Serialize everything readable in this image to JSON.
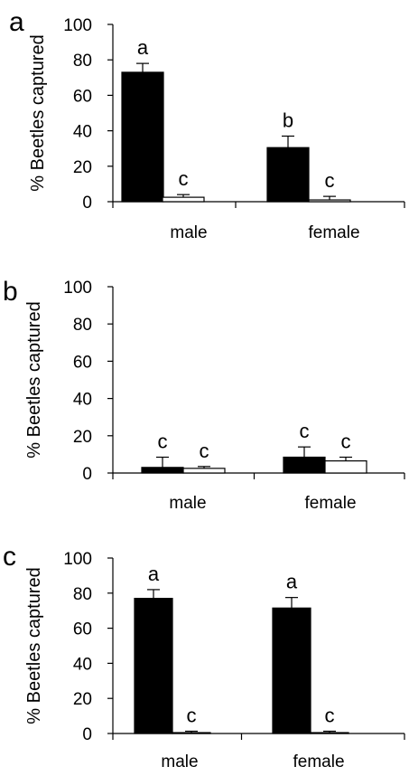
{
  "chart_data": [
    {
      "type": "bar",
      "panel_label": "a",
      "ylabel": "% Beetles captured",
      "ylim": [
        0,
        100
      ],
      "yticks": [
        0,
        20,
        40,
        60,
        80,
        100
      ],
      "categories": [
        "male",
        "female"
      ],
      "series": [
        {
          "fill": "#000000",
          "values": [
            73,
            30.5
          ],
          "errors": [
            5,
            6.5
          ],
          "letters": [
            "a",
            "b"
          ]
        },
        {
          "fill": "#ffffff",
          "values": [
            2.5,
            1
          ],
          "errors": [
            1.5,
            2
          ],
          "letters": [
            "c",
            "c"
          ]
        }
      ]
    },
    {
      "type": "bar",
      "panel_label": "b",
      "ylabel": "% Beetles captured",
      "ylim": [
        0,
        100
      ],
      "yticks": [
        0,
        20,
        40,
        60,
        80,
        100
      ],
      "categories": [
        "male",
        "female"
      ],
      "series": [
        {
          "fill": "#000000",
          "values": [
            3,
            8.5
          ],
          "errors": [
            5.5,
            5.5
          ],
          "letters": [
            "c",
            "c"
          ]
        },
        {
          "fill": "#ffffff",
          "values": [
            2.5,
            6.5
          ],
          "errors": [
            1,
            2
          ],
          "letters": [
            "c",
            "c"
          ]
        }
      ]
    },
    {
      "type": "bar",
      "panel_label": "c",
      "ylabel": "% Beetles captured",
      "ylim": [
        0,
        100
      ],
      "yticks": [
        0,
        20,
        40,
        60,
        80,
        100
      ],
      "categories": [
        "male",
        "female"
      ],
      "series": [
        {
          "fill": "#000000",
          "values": [
            77,
            71.5
          ],
          "errors": [
            5,
            6
          ],
          "letters": [
            "a",
            "a"
          ]
        },
        {
          "fill": "#ffffff",
          "values": [
            0.5,
            0.5
          ],
          "errors": [
            0.8,
            0.8
          ],
          "letters": [
            "c",
            "c"
          ]
        }
      ]
    }
  ]
}
